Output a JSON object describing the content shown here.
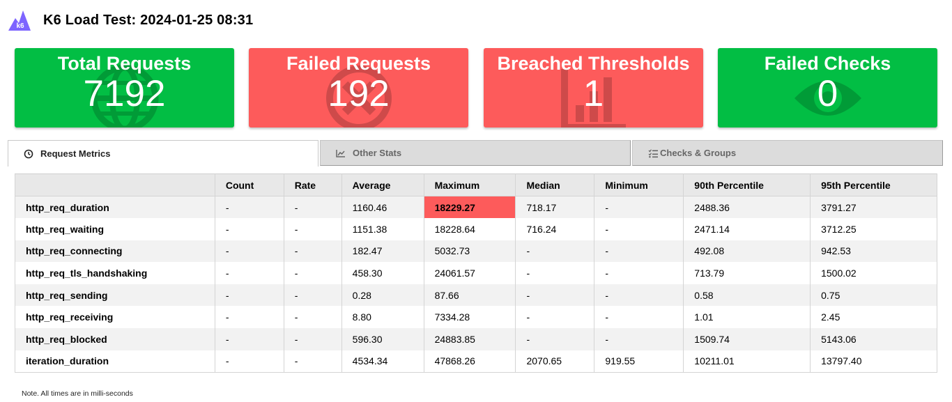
{
  "header": {
    "title": "K6 Load Test: 2024-01-25 08:31",
    "logo_icon": "k6-logo-icon",
    "logo_text": "k6",
    "logo_color": "#7d64ff"
  },
  "cards": [
    {
      "label": "Total Requests",
      "value": "7192",
      "status": "green",
      "icon": "globe-icon"
    },
    {
      "label": "Failed Requests",
      "value": "192",
      "status": "red",
      "icon": "x-circle-icon"
    },
    {
      "label": "Breached Thresholds",
      "value": "1",
      "status": "red",
      "icon": "bar-chart-icon"
    },
    {
      "label": "Failed Checks",
      "value": "0",
      "status": "green",
      "icon": "eye-icon"
    }
  ],
  "colors": {
    "green": "#02be44",
    "red": "#fd5b5b"
  },
  "tabs": [
    {
      "label": "Request Metrics",
      "icon": "clock-icon",
      "active": true
    },
    {
      "label": "Other Stats",
      "icon": "chart-icon",
      "active": false
    },
    {
      "label": "Checks & Groups",
      "icon": "list-icon",
      "active": false
    }
  ],
  "table": {
    "columns": [
      "",
      "Count",
      "Rate",
      "Average",
      "Maximum",
      "Median",
      "Minimum",
      "90th Percentile",
      "95th Percentile"
    ],
    "rows": [
      {
        "name": "http_req_duration",
        "values": [
          "-",
          "-",
          "1160.46",
          "18229.27",
          "718.17",
          "-",
          "2488.36",
          "3791.27"
        ],
        "failed_col": 3
      },
      {
        "name": "http_req_waiting",
        "values": [
          "-",
          "-",
          "1151.38",
          "18228.64",
          "716.24",
          "-",
          "2471.14",
          "3712.25"
        ]
      },
      {
        "name": "http_req_connecting",
        "values": [
          "-",
          "-",
          "182.47",
          "5032.73",
          "-",
          "-",
          "492.08",
          "942.53"
        ]
      },
      {
        "name": "http_req_tls_handshaking",
        "values": [
          "-",
          "-",
          "458.30",
          "24061.57",
          "-",
          "-",
          "713.79",
          "1500.02"
        ]
      },
      {
        "name": "http_req_sending",
        "values": [
          "-",
          "-",
          "0.28",
          "87.66",
          "-",
          "-",
          "0.58",
          "0.75"
        ]
      },
      {
        "name": "http_req_receiving",
        "values": [
          "-",
          "-",
          "8.80",
          "7334.28",
          "-",
          "-",
          "1.01",
          "2.45"
        ]
      },
      {
        "name": "http_req_blocked",
        "values": [
          "-",
          "-",
          "596.30",
          "24883.85",
          "-",
          "-",
          "1509.74",
          "5143.06"
        ]
      },
      {
        "name": "iteration_duration",
        "values": [
          "-",
          "-",
          "4534.34",
          "47868.26",
          "2070.65",
          "919.55",
          "10211.01",
          "13797.40"
        ]
      }
    ]
  },
  "note": "Note. All times are in milli-seconds"
}
